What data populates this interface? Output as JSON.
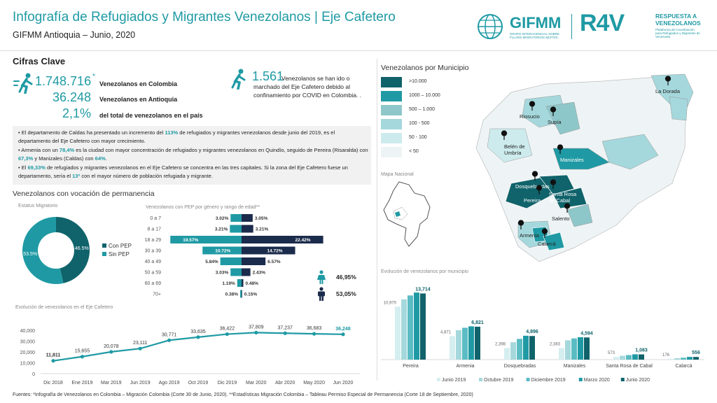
{
  "header": {
    "title": "Infografía de Refugiados y Migrantes Venezolanos | Eje Cafetero",
    "subtitle": "GIFMM Antioquia – Junio, 2020",
    "logo_gifmm": "GIFMM",
    "logo_gifmm_sub": "GRUPO INTERAGENCIAL SOBRE FLUJOS MIGRATORIOS MIXTOS",
    "logo_r4v": "R4V",
    "logo_r4v_line1": "RESPUESTA A",
    "logo_r4v_line2": "VENEZOLANOS",
    "logo_r4v_sub": "Plataforma de Coordinación para Refugiados y Migrantes de Venezuela"
  },
  "cifras": {
    "title": "Cifras Clave",
    "k1_value": "1.748.716",
    "k1_mark": "*",
    "k1_label": "Venezolanos en Colombia",
    "k2_value": "36.248",
    "k2_label": "Venezolanos en Antioquia",
    "k3_value": "2,1%",
    "k3_label": "del total de venezolanos en el país",
    "k4_value": "1.561",
    "k4_label": "Venezolanos se han ido o marchado del Eje Cafetero debido al confinamiento por COVID en Colombia. ."
  },
  "bullets": {
    "b1_pre": "El departamento de Caldas ha presentado un incremento del ",
    "b1_hl": "113%",
    "b1_post": " de refugiados y migrantes venezolanos desde junio del 2019, es el departamento del Eje Cafetero con mayor crecimiento.",
    "b2_pre": "Armenia con un ",
    "b2_hl": "78,4%",
    "b2_mid": " es la ciudad con mayor concentración de refugiados y migrantes venezolanos en Quindío, seguido de Pereira (Risaralda) con ",
    "b2_hl2": "67,3%",
    "b2_mid2": " y Manizales (Caldas) con ",
    "b2_hl3": "64%",
    "b2_post": ".",
    "b3_pre": "El ",
    "b3_hl": "69,33%",
    "b3_mid": " de refugiados y migrantes venezolanos en el Eje Cafetero se concentra en las tres capitales. Si la zona del Eje Cafetero fuese un departamento, sería el ",
    "b3_hl2": "13º",
    "b3_post": " con el mayor número de población refugiada y migrante."
  },
  "permanencia": {
    "title": "Venezolanos con vocación de permanencia",
    "donut_title": "Estatus Migratorio",
    "pyramid_title": "Venezolanos con PEP por género y rango de edad**",
    "female_pct": "46,95%",
    "male_pct": "53,05%"
  },
  "map": {
    "title": "Venezolanos por Municipio",
    "mini_title": "Mapa Nacional",
    "legend": [
      {
        "label": ">10.000",
        "color": "#10636b"
      },
      {
        "label": "1000 – 10.000",
        "color": "#1f9aa4"
      },
      {
        "label": "500 – 1.000",
        "color": "#8ec7c9"
      },
      {
        "label": "100 - 500",
        "color": "#a5d8dc"
      },
      {
        "label": "50 - 100",
        "color": "#cdebed"
      },
      {
        "label": "< 50",
        "color": "#eef4f5"
      }
    ],
    "places": [
      "La Dorada",
      "Riosucio",
      "Supía",
      "Belén de Umbría",
      "Manizales",
      "Dosquebradas",
      "Santa Rosa de Cabal",
      "Pereira",
      "Salento",
      "Armenia",
      "Calarcá"
    ]
  },
  "muni_chart_title": "Evolución de venezolanos por municipio",
  "trend_chart_title": "Evolución de venezolanos en el Eje Cafetero",
  "footer": "Fuentes: *Infografía de Venezolanos en Colombia – Migración Colombia (Corte 30 de Junio, 2020). **Estadísticas Migración Colombia – Tableau Permiso Especial de Permanencia (Corte 18 de Septiembre, 2020)",
  "chart_data": [
    {
      "type": "pie",
      "title": "Estatus Migratorio",
      "categories": [
        "Con PEP",
        "Sin PEP"
      ],
      "values": [
        46.5,
        53.5
      ],
      "labels": [
        "46.5%",
        "53.5%"
      ],
      "colors": [
        "#10636b",
        "#1f9aa4"
      ],
      "legend": "right"
    },
    {
      "type": "bar",
      "title": "Venezolanos con PEP por género y rango de edad**",
      "categories": [
        "0 a 7",
        "8 a 17",
        "18 a 29",
        "30 a 39",
        "40 a 49",
        "50 a 59",
        "60 a 69",
        "70+"
      ],
      "series": [
        {
          "values": [
            3.02,
            3.21,
            19.57,
            10.72,
            5.84,
            3.03,
            1.19,
            0.38
          ],
          "labels": [
            "3.02%",
            "3.21%",
            "19.57%",
            "10.72%",
            "5.84%",
            "3.03%",
            "1.19%",
            "0.38%"
          ],
          "color": "#1f9aa4"
        },
        {
          "values": [
            3.05,
            3.21,
            22.42,
            14.72,
            6.57,
            2.43,
            0.48,
            0.15
          ],
          "labels": [
            "3.05%",
            "3.21%",
            "22.42%",
            "14.72%",
            "6.57%",
            "2.43%",
            "0.48%",
            "0.15%"
          ],
          "color": "#1b2b4b"
        }
      ]
    },
    {
      "type": "line",
      "title": "Evolución de venezolanos en el Eje Cafetero",
      "categories": [
        "Dic 2018",
        "Ene 2019",
        "Mar 2019",
        "Jun 2019",
        "Ago 2019",
        "Oct 2019",
        "Dic 2019",
        "Mar 2020",
        "Abr 2020",
        "May 2020",
        "Jun 2020"
      ],
      "values": [
        11811,
        15655,
        20078,
        23111,
        30771,
        33635,
        36422,
        37809,
        37237,
        36683,
        36248
      ],
      "labels": [
        "11,811",
        "15,655",
        "20,078",
        "23,111",
        "30,771",
        "33,635",
        "36,422",
        "37,809",
        "37,237",
        "36,683",
        "36,248"
      ],
      "yticks": [
        "0",
        "10,000",
        "20,000",
        "30,000",
        "40,000"
      ],
      "ylim": [
        0,
        40000
      ],
      "grid": false
    },
    {
      "type": "bar",
      "title": "Evolución de venezolanos por municipio",
      "categories": [
        "Pereira",
        "Armenia",
        "Dosquebradas",
        "Manizales",
        "Santa Rosa de Cabal",
        "Calarcá"
      ],
      "series": [
        {
          "name": "Junio 2019",
          "values": [
            10970,
            4871,
            2398,
            2383,
            573,
            176
          ],
          "color": "#d5eef0"
        },
        {
          "name": "Octubre 2019",
          "values": [
            12500,
            6100,
            3600,
            4000,
            800,
            300
          ],
          "color": "#a5d8dc"
        },
        {
          "name": "Diciembre 2019",
          "values": [
            13300,
            6600,
            4300,
            4400,
            950,
            400
          ],
          "color": "#5bbcc3"
        },
        {
          "name": "Marzo 2020",
          "values": [
            13900,
            6900,
            4950,
            4650,
            1100,
            560
          ],
          "color": "#1f9aa4"
        },
        {
          "name": "Junio 2020",
          "values": [
            13714,
            6821,
            4896,
            4594,
            1083,
            556
          ],
          "color": "#10636b"
        }
      ],
      "first_labels": [
        "10,970",
        "4,871",
        "2,398",
        "2,383",
        "573",
        "176"
      ],
      "last_labels": [
        "13,714",
        "6,821",
        "4,896",
        "4,594",
        "1,083",
        "556"
      ],
      "legend": "bottom"
    }
  ]
}
